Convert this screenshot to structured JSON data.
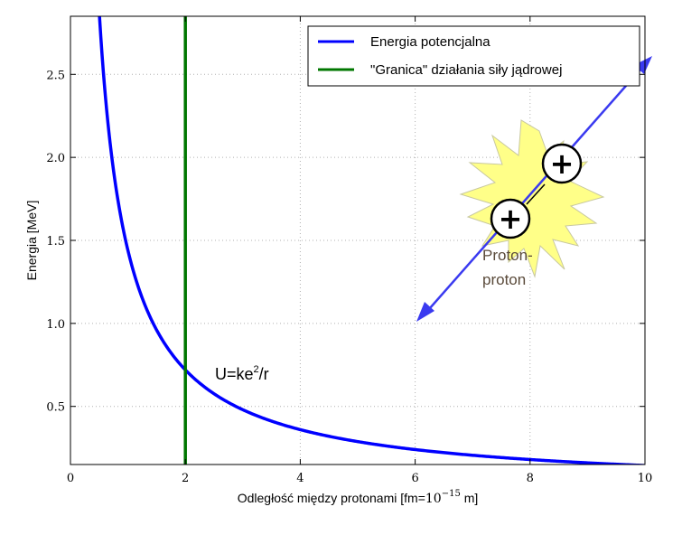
{
  "chart_data": {
    "type": "line",
    "title": "",
    "xlabel": "Odległość między protonami [fm=",
    "xlabel_sup_base": "10",
    "xlabel_sup_exp": "−15",
    "xlabel_suffix": " m]",
    "ylabel": "Energia [MeV]",
    "xlim": [
      0,
      10
    ],
    "ylim": [
      0.15,
      2.85
    ],
    "xticks": [
      0,
      2,
      4,
      6,
      8,
      10
    ],
    "xtick_labels": [
      "0",
      "2",
      "4",
      "6",
      "8",
      "10"
    ],
    "yticks": [
      0.5,
      1.0,
      1.5,
      2.0,
      2.5
    ],
    "ytick_labels": [
      "0.5",
      "1.0",
      "1.5",
      "2.0",
      "2.5"
    ],
    "grid": true,
    "legend_position": "top-right",
    "series": [
      {
        "name": "Energia potencjalna",
        "color": "#0000ff",
        "formula": "1.44/x",
        "x": [
          0.5,
          0.75,
          1,
          1.5,
          2,
          3,
          4,
          5,
          6,
          7,
          8,
          9,
          10
        ],
        "y": [
          2.88,
          1.92,
          1.44,
          0.96,
          0.72,
          0.48,
          0.36,
          0.288,
          0.24,
          0.206,
          0.18,
          0.16,
          0.144
        ]
      },
      {
        "name": "\"Granica\" działania siły jądrowej",
        "color": "#007700",
        "x": [
          2,
          2
        ],
        "y": [
          0.15,
          2.85
        ]
      }
    ],
    "annotations": {
      "formula_main": "U=ke",
      "formula_sup": "2",
      "formula_tail": "/r",
      "proton_label_line1": "Proton-",
      "proton_label_line2": "proton",
      "proton_symbol": "+"
    }
  },
  "colors": {
    "arrow": "#3a3af0",
    "burst_fill": "#ffff88",
    "burst_stroke": "#c8c8a0",
    "grid": "#b0b0b0"
  }
}
